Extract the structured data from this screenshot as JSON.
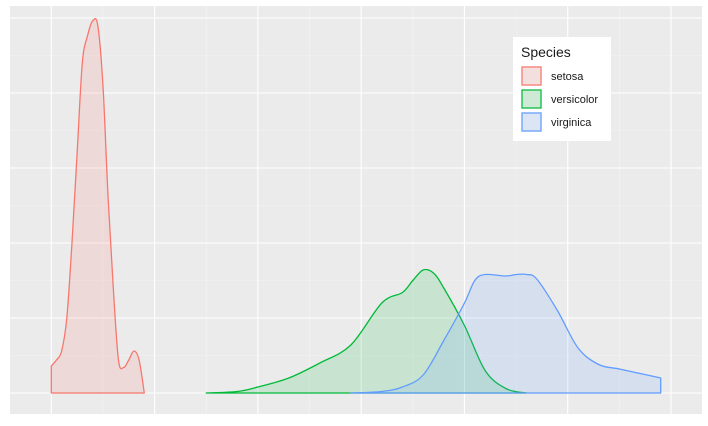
{
  "chart_data": {
    "type": "area",
    "title": "",
    "xlabel": "",
    "ylabel": "",
    "xlim": [
      0.6,
      7.3
    ],
    "ylim": [
      -0.14,
      2.58
    ],
    "grid": true,
    "legend": {
      "title": "Species",
      "placement": "top-right"
    },
    "series": [
      {
        "name": "setosa",
        "color": "#F8766D",
        "fill": "rgba(248,118,109,0.15)",
        "points": [
          [
            1.0,
            0.18
          ],
          [
            1.05,
            0.22
          ],
          [
            1.1,
            0.28
          ],
          [
            1.15,
            0.5
          ],
          [
            1.2,
            1.0
          ],
          [
            1.25,
            1.6
          ],
          [
            1.3,
            2.2
          ],
          [
            1.35,
            2.38
          ],
          [
            1.4,
            2.48
          ],
          [
            1.45,
            2.45
          ],
          [
            1.5,
            2.05
          ],
          [
            1.55,
            1.3
          ],
          [
            1.6,
            0.7
          ],
          [
            1.65,
            0.22
          ],
          [
            1.7,
            0.17
          ],
          [
            1.75,
            0.22
          ],
          [
            1.8,
            0.28
          ],
          [
            1.85,
            0.22
          ],
          [
            1.9,
            0.0
          ]
        ]
      },
      {
        "name": "versicolor",
        "color": "#00BA38",
        "fill": "rgba(0,186,56,0.15)",
        "points": [
          [
            2.5,
            0.0
          ],
          [
            2.8,
            0.01
          ],
          [
            3.0,
            0.04
          ],
          [
            3.3,
            0.1
          ],
          [
            3.6,
            0.2
          ],
          [
            3.9,
            0.32
          ],
          [
            4.2,
            0.6
          ],
          [
            4.4,
            0.67
          ],
          [
            4.5,
            0.75
          ],
          [
            4.6,
            0.82
          ],
          [
            4.7,
            0.8
          ],
          [
            4.8,
            0.7
          ],
          [
            5.0,
            0.45
          ],
          [
            5.2,
            0.15
          ],
          [
            5.4,
            0.03
          ],
          [
            5.6,
            0.0
          ]
        ]
      },
      {
        "name": "virginica",
        "color": "#619CFF",
        "fill": "rgba(97,156,255,0.15)",
        "points": [
          [
            3.9,
            0.0
          ],
          [
            4.2,
            0.01
          ],
          [
            4.4,
            0.04
          ],
          [
            4.6,
            0.12
          ],
          [
            4.8,
            0.35
          ],
          [
            5.0,
            0.6
          ],
          [
            5.1,
            0.75
          ],
          [
            5.2,
            0.79
          ],
          [
            5.4,
            0.78
          ],
          [
            5.5,
            0.79
          ],
          [
            5.6,
            0.79
          ],
          [
            5.7,
            0.76
          ],
          [
            5.9,
            0.55
          ],
          [
            6.1,
            0.3
          ],
          [
            6.3,
            0.19
          ],
          [
            6.5,
            0.16
          ],
          [
            6.7,
            0.13
          ],
          [
            6.9,
            0.1
          ]
        ]
      }
    ]
  }
}
